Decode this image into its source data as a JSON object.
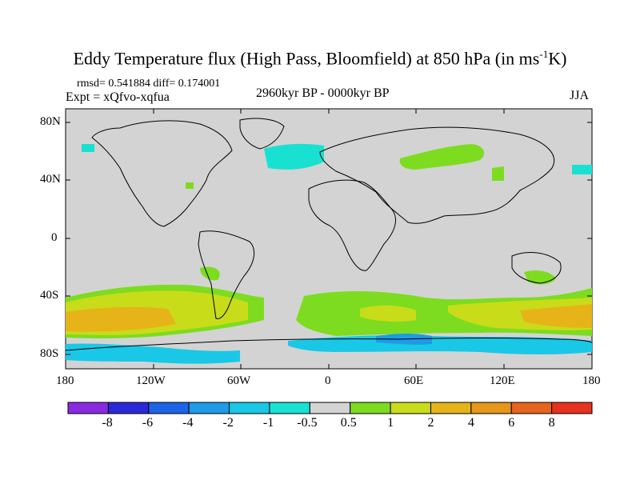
{
  "figure": {
    "title_main": "Eddy Temperature flux (High Pass, Bloomfield) at 850 hPa (in ms",
    "title_sup": "-1",
    "title_end": "K)",
    "stats": "rmsd= 0.541884 diff= 0.174001",
    "experiment": "Expt = xQfvo-xqfua",
    "period": "2960kyr BP - 0000kyr BP",
    "season": "JJA"
  },
  "colors": {
    "land_ocean_background": "#d3d3d3",
    "coastline": "#000000"
  },
  "chart_data": {
    "type": "map",
    "projection": "cylindrical-equidistant",
    "lat_range": [
      -90,
      90
    ],
    "lon_range": [
      -180,
      180
    ],
    "lat_tick_labels": [
      "80N",
      "40N",
      "0",
      "40S",
      "80S"
    ],
    "lon_tick_labels": [
      "180",
      "120W",
      "60W",
      "0",
      "60E",
      "120E",
      "180"
    ],
    "colorbar": {
      "labels": [
        "-8",
        "-6",
        "-4",
        "-2",
        "-1",
        "-0.5",
        "0.5",
        "1",
        "2",
        "4",
        "6",
        "8"
      ],
      "colors": [
        "#8a2be2",
        "#2a2ad8",
        "#1e64e6",
        "#1e9be6",
        "#19c8e6",
        "#19e1d2",
        "#d3d3d3",
        "#7ddc1f",
        "#c8dc19",
        "#e6b419",
        "#e69619",
        "#e6641e",
        "#e6321e"
      ]
    },
    "regions": [
      {
        "name": "southern-ocean-positive-band",
        "level": "2 to 4",
        "lat_range": [
          -65,
          -35
        ]
      },
      {
        "name": "antarctic-coast-negative-band",
        "level": "-2 to -1",
        "lat_range": [
          -80,
          -65
        ]
      },
      {
        "name": "north-atlantic-negative-patch",
        "level": "-1 to -0.5",
        "lat_range": [
          50,
          65
        ]
      },
      {
        "name": "eurasia-positive-patch",
        "level": "0.5 to 1",
        "lat_range": [
          45,
          60
        ]
      }
    ]
  }
}
